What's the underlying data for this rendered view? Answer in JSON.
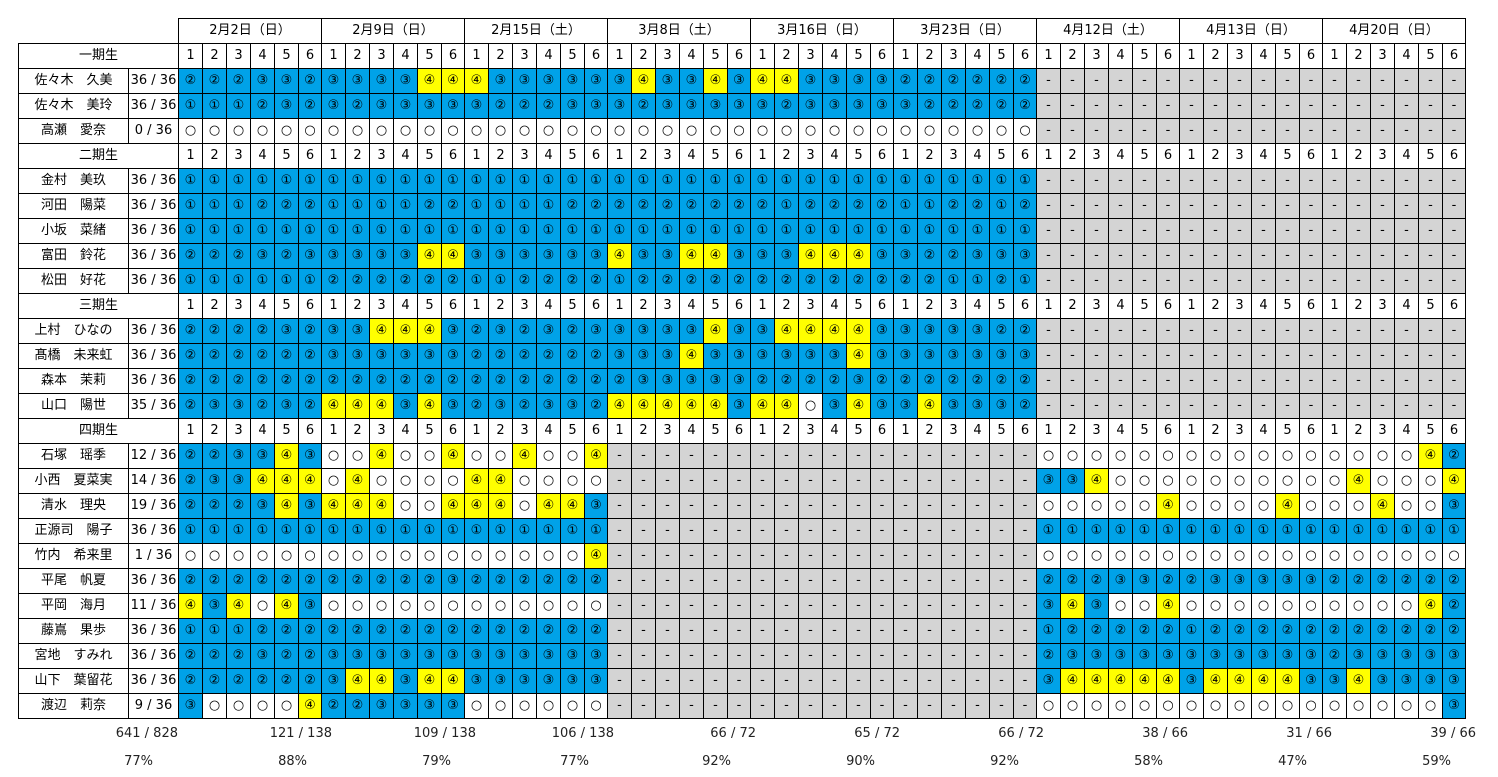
{
  "dates": [
    "2月2日（日）",
    "2月9日（日）",
    "2月15日（土）",
    "3月8日（土）",
    "3月16日（日）",
    "3月23日（日）",
    "4月12日（土）",
    "4月13日（日）",
    "4月20日（日）"
  ],
  "groups": [
    {
      "label": "一期生",
      "members": [
        {
          "name": "佐々木　久美",
          "score": "36 / 36",
          "cells": "222332|333344|433333|343343|443333|222222|------|------|------"
        },
        {
          "name": "佐々木　美玲",
          "score": "36 / 36",
          "cells": "111232|323333|322233|323333|323333|322222|------|------|------"
        },
        {
          "name": "高瀬　愛奈",
          "score": "0 / 36",
          "cells": "oooooo|oooooo|oooooo|oooooo|oooooo|oooooo|------|------|------"
        }
      ]
    },
    {
      "label": "二期生",
      "members": [
        {
          "name": "金村　美玖",
          "score": "36 / 36",
          "cells": "111111|111111|111111|111111|111111|111111|------|------|------"
        },
        {
          "name": "河田　陽菜",
          "score": "36 / 36",
          "cells": "111222|111122|111122|222222|212222|112212|------|------|------"
        },
        {
          "name": "小坂　菜緒",
          "score": "36 / 36",
          "cells": "111111|111111|111111|111111|111111|111111|------|------|------"
        },
        {
          "name": "富田　鈴花",
          "score": "36 / 36",
          "cells": "222323|333344|333333|433443|334443|322333|------|------|------"
        },
        {
          "name": "松田　好花",
          "score": "36 / 36",
          "cells": "111111|222222|112222|122222|222222|221121|------|------|------"
        }
      ]
    },
    {
      "label": "三期生",
      "members": [
        {
          "name": "上村　ひなの",
          "score": "36 / 36",
          "cells": "222232|334443|232323|333343|344443|333322|------|------|------"
        },
        {
          "name": "髙橋　未来虹",
          "score": "36 / 36",
          "cells": "222222|333333|222222|333433|333343|333333|------|------|------"
        },
        {
          "name": "森本　茉莉",
          "score": "36 / 36",
          "cells": "222222|222222|222222|233333|222232|222222|------|------|------"
        },
        {
          "name": "山口　陽世",
          "score": "35 / 36",
          "cells": "233232|444343|232332|444443|44o343|343332|------|------|------"
        }
      ]
    },
    {
      "label": "四期生",
      "members": [
        {
          "name": "石塚　瑶季",
          "score": "12 / 36",
          "cells": "223343|oo4oo4|oo4oo4|------|------|------|oooooo|oooooo|oooo42"
        },
        {
          "name": "小西　夏菜実",
          "score": "14 / 36",
          "cells": "233444|o4oooo|44oooo|------|------|------|334ooo|oooooo|o4ooo4"
        },
        {
          "name": "清水　理央",
          "score": "19 / 36",
          "cells": "222343|444oo4|44o443|------|------|------|ooooo4|oooo4o|oo4oo3"
        },
        {
          "name": "正源司　陽子",
          "score": "36 / 36",
          "cells": "111111|111111|111111|------|------|------|111111|111111|111111"
        },
        {
          "name": "竹内　希来里",
          "score": "1 / 36",
          "cells": "oooooo|oooooo|ooooo4|------|------|------|oooooo|oooooo|oooooo"
        },
        {
          "name": "平尾　帆夏",
          "score": "36 / 36",
          "cells": "222222|222223|222222|------|------|------|222332|233333|222222"
        },
        {
          "name": "平岡　海月",
          "score": "11 / 36",
          "cells": "434o43|oooooo|oooooo|------|------|------|343oo4|oooooo|oooo42"
        },
        {
          "name": "藤嶌　果歩",
          "score": "36 / 36",
          "cells": "111222|222222|222222|------|------|------|122222|122222|222222"
        },
        {
          "name": "宮地　すみれ",
          "score": "36 / 36",
          "cells": "222322|333333|333333|------|------|------|233333|333333|233333"
        },
        {
          "name": "山下　葉留花",
          "score": "36 / 36",
          "cells": "222222|344344|333333|------|------|------|344444|344443|343333"
        },
        {
          "name": "渡辺　莉奈",
          "score": "9 / 36",
          "cells": "3oooo4|223333|oooooo|------|------|------|oooooo|oooooo|ooooo3"
        }
      ]
    }
  ],
  "totals": [
    {
      "count": "641 / 828",
      "pct": "77%"
    },
    {
      "count": "121 / 138",
      "pct": "88%"
    },
    {
      "count": "109 / 138",
      "pct": "79%"
    },
    {
      "count": "106 / 138",
      "pct": "77%"
    },
    {
      "count": "66 / 72",
      "pct": "92%"
    },
    {
      "count": "65 / 72",
      "pct": "90%"
    },
    {
      "count": "66 / 72",
      "pct": "92%"
    },
    {
      "count": "38 / 66",
      "pct": "58%"
    },
    {
      "count": "31 / 66",
      "pct": "47%"
    },
    {
      "count": "39 / 66",
      "pct": "59%"
    }
  ],
  "symbols": {
    "1": "①",
    "2": "②",
    "3": "③",
    "4": "④",
    "o": "○",
    "-": "-"
  },
  "colors": {
    "blue": "#00a2e8",
    "yellow": "#ffff00",
    "gray": "#d4d4d4",
    "white": "#ffffff"
  }
}
